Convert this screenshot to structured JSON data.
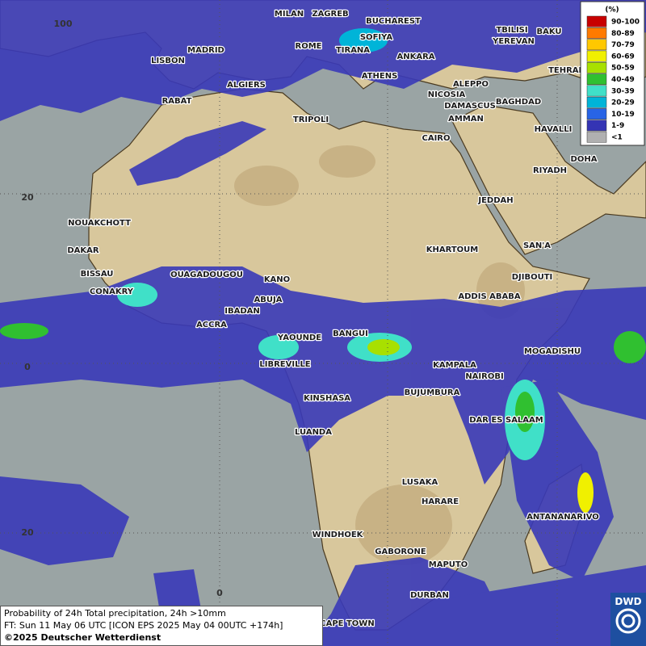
{
  "map": {
    "cities": [
      "MILAN",
      "ZAGREB",
      "BUCHAREST",
      "TBILISI",
      "BAKU",
      "ROME",
      "SOFIYA",
      "YEREVAN",
      "MADRID",
      "TIRANA",
      "ANKARA",
      "LISBON",
      "ATHENS",
      "TEHRAN",
      "ALGIERS",
      "ALEPPO",
      "RABAT",
      "NICOSIA",
      "BAGHDAD",
      "TRIPOLI",
      "DAMASCUS",
      "AMMAN",
      "HAVALLI",
      "CAIRO",
      "DOHA",
      "RIYADH",
      "JEDDAH",
      "NOUAKCHOTT",
      "DAKAR",
      "SAN'A",
      "KHARTOUM",
      "BISSAU",
      "OUAGADOUGOU",
      "KANO",
      "DJIBOUTI",
      "CONAKRY",
      "ABUJA",
      "ADDIS ABABA",
      "IBADAN",
      "ACCRA",
      "BANGUI",
      "YAOUNDE",
      "MOGADISHU",
      "LIBREVILLE",
      "KAMPALA",
      "NAIROBI",
      "KINSHASA",
      "BUJUMBURA",
      "DAR ES SALAAM",
      "LUANDA",
      "LUSAKA",
      "HARARE",
      "ANTANANARIVO",
      "WINDHOEK",
      "GABORONE",
      "MAPUTO",
      "DURBAN",
      "CAPE TOWN"
    ],
    "grid_labels": [
      "100",
      "20",
      "0",
      "20",
      "0"
    ]
  },
  "legend": {
    "title": "(%)",
    "entries": [
      {
        "label": "90-100",
        "color": "#c80000"
      },
      {
        "label": "80-89",
        "color": "#ff7a00"
      },
      {
        "label": "70-79",
        "color": "#ffc800"
      },
      {
        "label": "60-69",
        "color": "#f0f000"
      },
      {
        "label": "50-59",
        "color": "#a8e000"
      },
      {
        "label": "40-49",
        "color": "#30c030"
      },
      {
        "label": "30-39",
        "color": "#40e0c8"
      },
      {
        "label": "20-29",
        "color": "#00b4d8"
      },
      {
        "label": "10-19",
        "color": "#2864e6"
      },
      {
        "label": "1-9",
        "color": "#3434b4"
      },
      {
        "label": "<1",
        "color": "#b0b0b0"
      }
    ]
  },
  "caption": {
    "line1": "Probability of 24h Total precipitation, 24h >10mm",
    "line2": "FT: Sun 11 May 06 UTC [ICON EPS 2025 May 04 00UTC +174h]",
    "copyright": "©2025 Deutscher Wetterdienst"
  },
  "logo": "DWD"
}
